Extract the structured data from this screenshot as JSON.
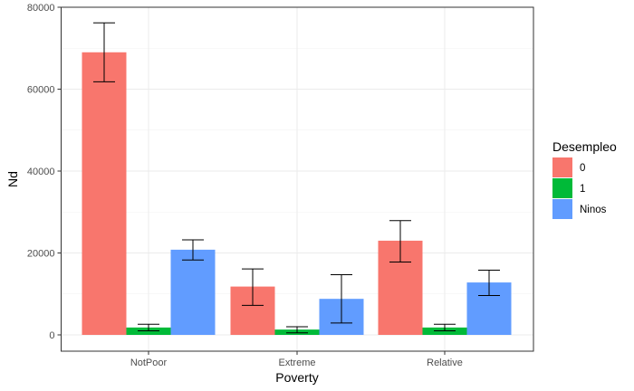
{
  "chart_data": {
    "type": "bar",
    "xlabel": "Poverty",
    "ylabel": "Nd",
    "categories": [
      "NotPoor",
      "Extreme",
      "Relative"
    ],
    "ylim": [
      0,
      80000
    ],
    "yticks": [
      0,
      20000,
      40000,
      60000,
      80000
    ],
    "grid": true,
    "legend": {
      "title": "Desempleo",
      "position": "right"
    },
    "series": [
      {
        "name": "0",
        "color": "#F8766D",
        "values": [
          69000,
          11800,
          23000
        ],
        "error_low": [
          61800,
          7200,
          17800
        ],
        "error_high": [
          76200,
          16100,
          27900
        ]
      },
      {
        "name": "1",
        "color": "#00BA38",
        "values": [
          1800,
          1300,
          1800
        ],
        "error_low": [
          1000,
          500,
          1000
        ],
        "error_high": [
          2600,
          2000,
          2600
        ]
      },
      {
        "name": "Ninos",
        "color": "#619CFF",
        "values": [
          20800,
          8800,
          12800
        ],
        "error_low": [
          18300,
          2900,
          9600
        ],
        "error_high": [
          23200,
          14700,
          15800
        ]
      }
    ]
  }
}
